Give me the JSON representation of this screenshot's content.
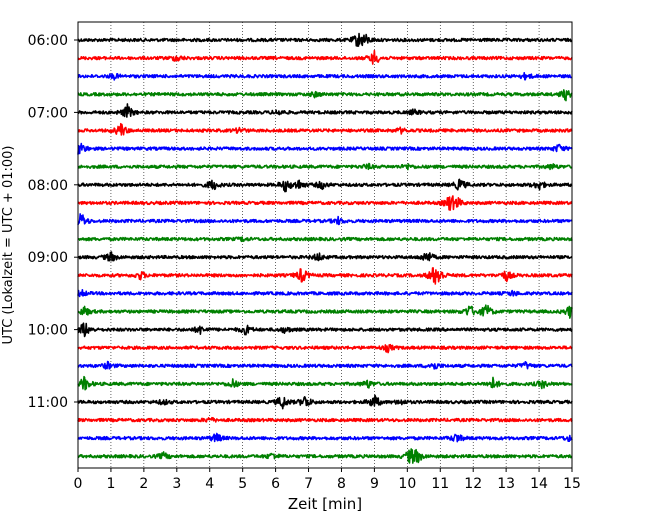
{
  "chart_data": {
    "type": "line",
    "title": "",
    "xlabel": "Zeit  [min]",
    "ylabel": "UTC (Lokalzeit = UTC + 01:00)",
    "xlim": [
      0,
      15
    ],
    "x_ticks": [
      0,
      1,
      2,
      3,
      4,
      5,
      6,
      7,
      8,
      9,
      10,
      11,
      12,
      13,
      14,
      15
    ],
    "x_tick_labels": [
      "0",
      "1",
      "2",
      "3",
      "4",
      "5",
      "6",
      "7",
      "8",
      "9",
      "10",
      "11",
      "12",
      "13",
      "14",
      "15"
    ],
    "y_tick_labels": [
      "06:00",
      "07:00",
      "08:00",
      "09:00",
      "10:00",
      "11:00"
    ],
    "row_interval_min": 15,
    "grid": {
      "x": true,
      "style": "dotted",
      "y": false
    },
    "legend": "none",
    "series": [
      {
        "start": "06:00",
        "color": "#000000",
        "events": [
          [
            8.5,
            0.8
          ],
          [
            8.7,
            0.7
          ]
        ]
      },
      {
        "start": "06:15",
        "color": "#ff0000",
        "events": [
          [
            3.0,
            0.4
          ],
          [
            9.0,
            0.9
          ]
        ]
      },
      {
        "start": "06:30",
        "color": "#0000ff",
        "events": [
          [
            1.1,
            0.3
          ],
          [
            13.6,
            0.4
          ]
        ]
      },
      {
        "start": "06:45",
        "color": "#008000",
        "events": [
          [
            7.2,
            0.3
          ],
          [
            14.8,
            0.7
          ]
        ]
      },
      {
        "start": "07:00",
        "color": "#000000",
        "events": [
          [
            1.5,
            0.9
          ],
          [
            6.1,
            0.3
          ],
          [
            10.2,
            0.3
          ]
        ]
      },
      {
        "start": "07:15",
        "color": "#ff0000",
        "events": [
          [
            1.3,
            0.9
          ],
          [
            4.9,
            0.3
          ],
          [
            9.8,
            0.3
          ]
        ]
      },
      {
        "start": "07:30",
        "color": "#0000ff",
        "events": [
          [
            0.05,
            1.0
          ],
          [
            14.6,
            0.5
          ]
        ]
      },
      {
        "start": "07:45",
        "color": "#008000",
        "events": [
          [
            8.8,
            0.3
          ],
          [
            10.0,
            0.3
          ],
          [
            14.4,
            0.3
          ]
        ]
      },
      {
        "start": "08:00",
        "color": "#000000",
        "events": [
          [
            4.1,
            0.7
          ],
          [
            6.3,
            0.8
          ],
          [
            6.7,
            0.6
          ],
          [
            7.4,
            0.5
          ],
          [
            11.6,
            0.8
          ],
          [
            14.0,
            0.6
          ]
        ]
      },
      {
        "start": "08:15",
        "color": "#ff0000",
        "events": [
          [
            11.3,
            1.0
          ],
          [
            11.5,
            0.6
          ]
        ]
      },
      {
        "start": "08:30",
        "color": "#0000ff",
        "events": [
          [
            0.1,
            1.0
          ],
          [
            7.9,
            0.4
          ]
        ]
      },
      {
        "start": "08:45",
        "color": "#008000",
        "events": [
          [
            5.0,
            0.2
          ]
        ]
      },
      {
        "start": "09:00",
        "color": "#000000",
        "events": [
          [
            1.0,
            0.6
          ],
          [
            7.3,
            0.5
          ],
          [
            10.6,
            0.8
          ]
        ]
      },
      {
        "start": "09:15",
        "color": "#ff0000",
        "events": [
          [
            1.9,
            0.5
          ],
          [
            6.8,
            1.0
          ],
          [
            10.8,
            0.9
          ],
          [
            10.95,
            0.9
          ],
          [
            13.0,
            0.7
          ]
        ]
      },
      {
        "start": "09:30",
        "color": "#0000ff",
        "events": [
          [
            0.1,
            0.4
          ],
          [
            13.2,
            0.3
          ]
        ]
      },
      {
        "start": "09:45",
        "color": "#008000",
        "events": [
          [
            0.2,
            0.6
          ],
          [
            11.9,
            0.8
          ],
          [
            12.4,
            0.9
          ],
          [
            14.95,
            0.8
          ]
        ]
      },
      {
        "start": "10:00",
        "color": "#000000",
        "events": [
          [
            0.2,
            1.0
          ],
          [
            3.7,
            0.5
          ],
          [
            5.1,
            0.6
          ],
          [
            6.3,
            0.4
          ]
        ]
      },
      {
        "start": "10:15",
        "color": "#ff0000",
        "events": [
          [
            9.4,
            0.5
          ]
        ]
      },
      {
        "start": "10:30",
        "color": "#0000ff",
        "events": [
          [
            0.9,
            0.4
          ],
          [
            10.8,
            0.5
          ],
          [
            13.6,
            0.4
          ]
        ]
      },
      {
        "start": "10:45",
        "color": "#008000",
        "events": [
          [
            0.2,
            0.9
          ],
          [
            4.7,
            0.5
          ],
          [
            8.8,
            0.5
          ],
          [
            12.6,
            0.7
          ],
          [
            14.1,
            0.5
          ]
        ]
      },
      {
        "start": "11:00",
        "color": "#000000",
        "events": [
          [
            2.6,
            0.3
          ],
          [
            6.2,
            0.9
          ],
          [
            6.9,
            0.8
          ],
          [
            9.0,
            0.9
          ],
          [
            9.8,
            0.3
          ]
        ]
      },
      {
        "start": "11:15",
        "color": "#ff0000",
        "events": [
          [
            4.0,
            0.3
          ]
        ]
      },
      {
        "start": "11:30",
        "color": "#0000ff",
        "events": [
          [
            4.2,
            0.6
          ],
          [
            11.5,
            0.6
          ],
          [
            14.9,
            0.3
          ]
        ]
      },
      {
        "start": "11:45",
        "color": "#008000",
        "events": [
          [
            2.6,
            0.4
          ],
          [
            5.9,
            0.4
          ],
          [
            10.1,
            0.9
          ],
          [
            10.3,
            0.7
          ]
        ]
      }
    ]
  }
}
